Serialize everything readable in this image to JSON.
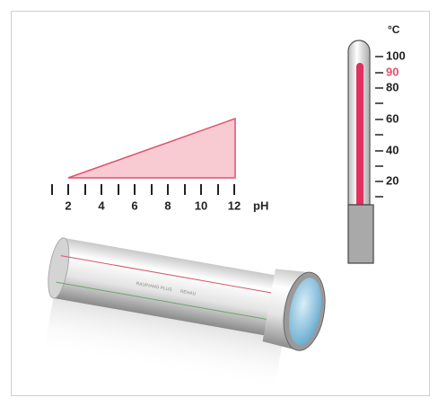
{
  "ph_scale": {
    "labels": [
      "2",
      "4",
      "6",
      "8",
      "10",
      "12"
    ],
    "unit": "pH"
  },
  "thermometer": {
    "unit": "°C",
    "labels": [
      "100",
      "90",
      "80",
      "60",
      "40",
      "20"
    ]
  },
  "pipe": {
    "texts": [
      "RAUPIANO PLUS",
      "REHAU"
    ]
  }
}
